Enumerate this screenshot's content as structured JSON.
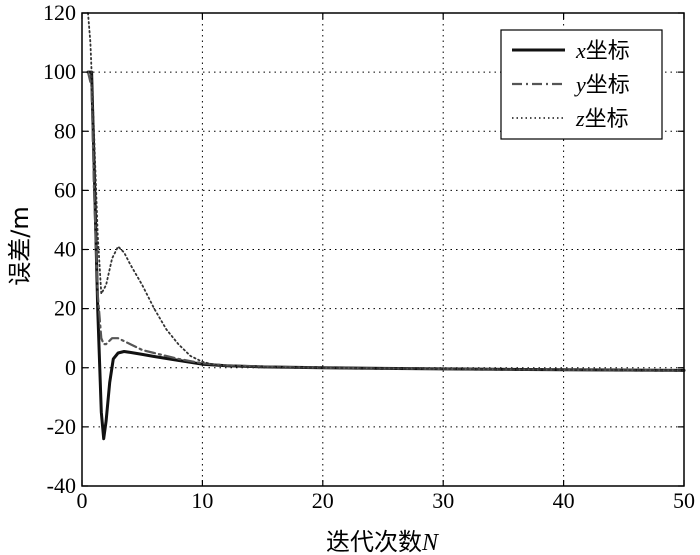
{
  "chart_data": {
    "type": "line",
    "xlabel": "迭代次数",
    "xlabel_var": "N",
    "ylabel": "误差/m",
    "xlim": [
      0,
      50
    ],
    "ylim": [
      -40,
      120
    ],
    "xticks": [
      0,
      10,
      20,
      30,
      40,
      50
    ],
    "yticks": [
      -40,
      -20,
      0,
      20,
      40,
      60,
      80,
      100,
      120
    ],
    "grid": true,
    "legend_position": "top-right",
    "series": [
      {
        "name": "x坐标",
        "name_var": "x",
        "name_suffix": "坐标",
        "style": "solid",
        "color": "#111111",
        "x": [
          0.5,
          0.8,
          1.0,
          1.3,
          1.6,
          1.8,
          2.0,
          2.3,
          2.6,
          3.0,
          3.5,
          4.0,
          5.0,
          6.0,
          8.0,
          10.0,
          12.0,
          15.0,
          20.0,
          30.0,
          40.0,
          50.0
        ],
        "y": [
          100,
          100,
          70,
          20,
          -15,
          -24,
          -18,
          -5,
          3,
          5,
          5.5,
          5.2,
          4.5,
          3.8,
          2.5,
          1.2,
          0.7,
          0.3,
          0,
          -0.4,
          -0.7,
          -0.9
        ]
      },
      {
        "name": "y坐标",
        "name_var": "y",
        "name_suffix": "坐标",
        "style": "dashdot",
        "color": "#555555",
        "x": [
          0.5,
          0.8,
          1.0,
          1.3,
          1.6,
          1.8,
          2.0,
          2.5,
          3.0,
          3.5,
          4.0,
          5.0,
          6.0,
          8.0,
          10.0,
          12.0,
          15.0,
          20.0,
          30.0,
          40.0,
          50.0
        ],
        "y": [
          100,
          95,
          60,
          25,
          10,
          8,
          8,
          10,
          10,
          9,
          8,
          6,
          5,
          3,
          1.5,
          0.8,
          0.4,
          0,
          -0.4,
          -0.7,
          -0.9
        ]
      },
      {
        "name": "z坐标",
        "name_var": "z",
        "name_suffix": "坐标",
        "style": "dotted",
        "color": "#333333",
        "x": [
          0.5,
          0.7,
          1.0,
          1.3,
          1.6,
          2.0,
          2.5,
          3.0,
          3.5,
          4.0,
          5.0,
          6.0,
          7.0,
          8.0,
          9.0,
          10.0,
          11.0,
          12.0,
          15.0,
          20.0,
          30.0,
          40.0,
          50.0
        ],
        "y": [
          120,
          110,
          80,
          45,
          25,
          28,
          37,
          41,
          39,
          35,
          28,
          20,
          13,
          8,
          4,
          2,
          1,
          0.5,
          0.2,
          0,
          -0.4,
          -0.7,
          -0.9
        ]
      }
    ]
  }
}
